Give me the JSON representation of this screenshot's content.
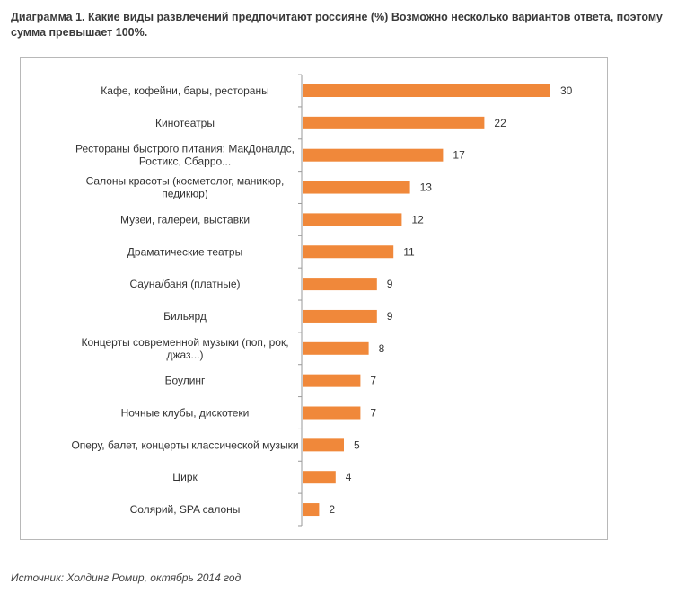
{
  "title": "Диаграмма 1. Какие виды развлечений предпочитают россияне (%) Возможно несколько вариантов ответа, поэтому сумма превышает 100%.",
  "source": "Источник: Холдинг Ромир, октябрь 2014 год",
  "colors": {
    "bar": "#f0883a",
    "axis": "#9a9a9a",
    "text": "#333333"
  },
  "chart_data": {
    "type": "bar",
    "orientation": "horizontal",
    "categories": [
      [
        "Кафе, кофейни, бары, рестораны"
      ],
      [
        "Кинотеатры"
      ],
      [
        "Рестораны быстрого питания: МакДоналдс,",
        "Ростикс, Сбарро..."
      ],
      [
        "Салоны красоты (косметолог, маникюр,",
        "педикюр)"
      ],
      [
        "Музеи, галереи, выставки"
      ],
      [
        "Драматические театры"
      ],
      [
        "Сауна/баня (платные)"
      ],
      [
        "Бильярд"
      ],
      [
        "Концерты современной музыки (поп, рок,",
        "джаз...)"
      ],
      [
        "Боулинг"
      ],
      [
        "Ночные клубы, дискотеки"
      ],
      [
        "Оперу, балет, концерты классической музыки"
      ],
      [
        "Цирк"
      ],
      [
        "Солярий, SPA салоны"
      ]
    ],
    "values": [
      30,
      22,
      17,
      13,
      12,
      11,
      9,
      9,
      8,
      7,
      7,
      5,
      4,
      2
    ],
    "data_labels": true,
    "xlim": [
      0,
      30
    ],
    "grid": false,
    "legend": "none"
  }
}
